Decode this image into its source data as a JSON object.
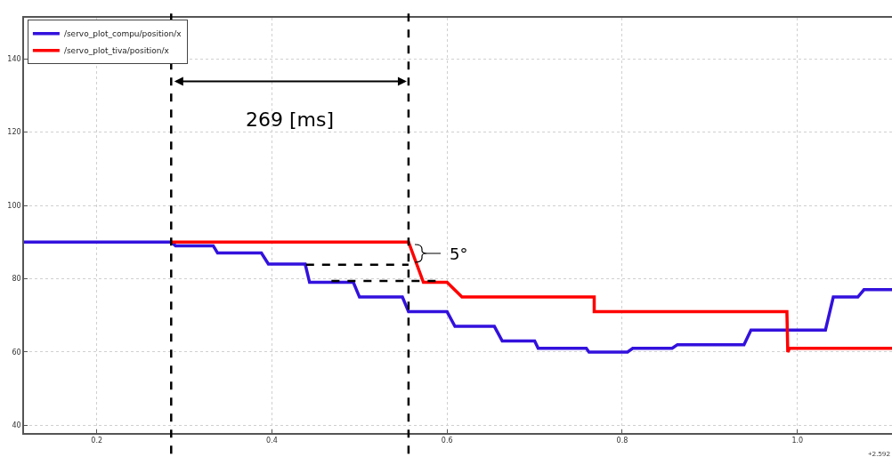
{
  "chart_data": {
    "type": "line",
    "xlim": [
      0.117,
      1.108
    ],
    "ylim": [
      37.9,
      151.2
    ],
    "xticks": [
      0.2,
      0.4,
      0.6,
      0.8,
      {
        "value": 1,
        "label": "1.0"
      }
    ],
    "yticks": [
      40,
      60,
      80,
      100,
      120,
      140
    ],
    "grid": true,
    "legend": "top left",
    "line_style": "solid",
    "marker": "none",
    "series": [
      {
        "name": "/servo_plot_compu/position/x",
        "color": "#3311dd",
        "x": [
          0.117,
          0.285,
          0.29,
          0.333,
          0.338,
          0.388,
          0.396,
          0.438,
          0.443,
          0.493,
          0.5,
          0.549,
          0.556,
          0.6,
          0.609,
          0.654,
          0.663,
          0.7,
          0.704,
          0.759,
          0.762,
          0.806,
          0.812,
          0.857,
          0.863,
          0.939,
          0.947,
          1.032,
          1.041,
          1.069,
          1.076,
          1.108
        ],
        "values": [
          90,
          90,
          89,
          89,
          87,
          87,
          84,
          84,
          79,
          79,
          75,
          75,
          71,
          71,
          67,
          67,
          63,
          63,
          61,
          61,
          60,
          60,
          61,
          61,
          62,
          62,
          66,
          66,
          75,
          75,
          77,
          77
        ]
      },
      {
        "name": "/servo_plot_tiva/position/x",
        "color": "#ff0000",
        "x": [
          0.285,
          0.556,
          0.573,
          0.6,
          0.617,
          0.768,
          0.768,
          0.988,
          0.989,
          0.991,
          1.108
        ],
        "values": [
          90,
          90,
          79,
          79,
          75,
          75,
          71,
          71,
          60,
          61,
          61
        ]
      },
      {
        "color": "#000000",
        "line_style": "dashed",
        "x": [
          0.439,
          0.556
        ],
        "values": [
          83.8,
          83.8
        ]
      },
      {
        "color": "#000000",
        "line_style": "dashed",
        "x": [
          0.468,
          0.587
        ],
        "values": [
          79.4,
          79.4
        ]
      }
    ],
    "ref_lines": [
      {
        "axis": "x",
        "value": 0.285,
        "color": "#000000",
        "line_style": "dashed"
      },
      {
        "axis": "x",
        "value": 0.556,
        "color": "#000000",
        "line_style": "dashed"
      }
    ],
    "annotations": [
      "269 [ms]",
      "5°",
      "+2.592"
    ]
  }
}
